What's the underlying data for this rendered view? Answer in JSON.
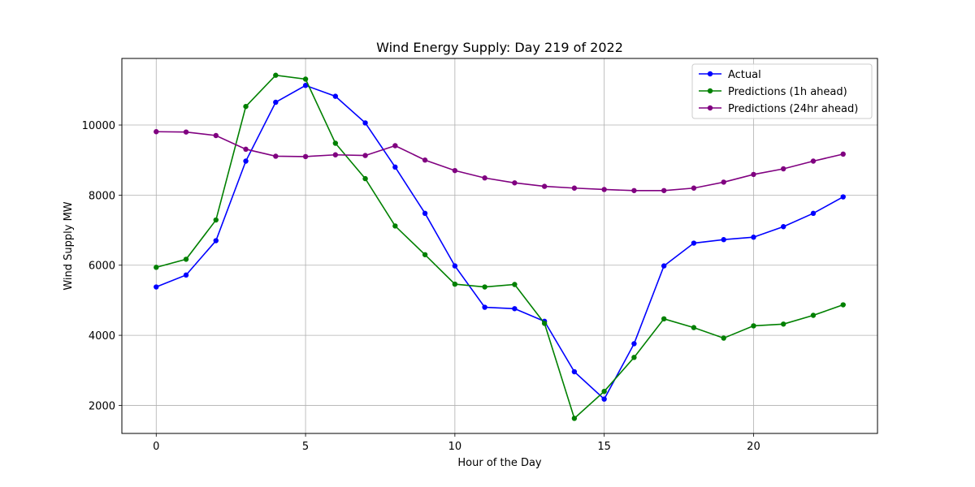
{
  "chart_data": {
    "type": "line",
    "title": "Wind Energy Supply: Day 219 of 2022",
    "xlabel": "Hour of the Day",
    "ylabel": "Wind Supply MW",
    "xlim": [
      -1.15,
      24.15
    ],
    "ylim": [
      1200,
      11900
    ],
    "xticks": [
      0,
      5,
      10,
      15,
      20
    ],
    "yticks": [
      2000,
      4000,
      6000,
      8000,
      10000
    ],
    "grid": true,
    "legend_position": "upper-right",
    "x": [
      0,
      1,
      2,
      3,
      4,
      5,
      6,
      7,
      8,
      9,
      10,
      11,
      12,
      13,
      14,
      15,
      16,
      17,
      18,
      19,
      20,
      21,
      22,
      23
    ],
    "series": [
      {
        "name": "Actual",
        "color": "#0000ff",
        "values": [
          5380,
          5720,
          6700,
          8970,
          10650,
          11130,
          10820,
          10060,
          8800,
          7480,
          5980,
          4800,
          4760,
          4400,
          2960,
          2180,
          3760,
          5980,
          6630,
          6730,
          6800,
          7100,
          7480,
          7950
        ]
      },
      {
        "name": "Predictions (1h ahead)",
        "color": "#008000",
        "values": [
          5940,
          6170,
          7290,
          10530,
          11420,
          11310,
          9480,
          8470,
          7120,
          6300,
          5460,
          5380,
          5450,
          4340,
          1630,
          2400,
          3370,
          4470,
          4220,
          3920,
          4270,
          4320,
          4570,
          4870
        ]
      },
      {
        "name": "Predictions (24hr ahead)",
        "color": "#800080",
        "values": [
          9810,
          9800,
          9700,
          9310,
          9110,
          9100,
          9150,
          9130,
          9410,
          9000,
          8700,
          8490,
          8350,
          8250,
          8200,
          8160,
          8130,
          8130,
          8200,
          8370,
          8590,
          8750,
          8970,
          9170
        ]
      }
    ]
  }
}
